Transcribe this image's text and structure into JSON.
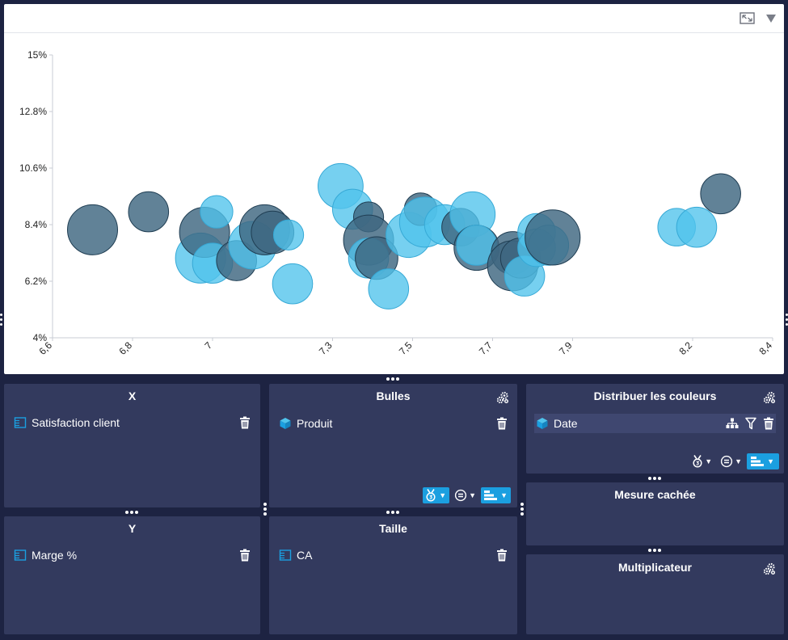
{
  "colors": {
    "series_dark": "#3e6680",
    "series_light": "#4fc3ec",
    "accent": "#1b9fe0",
    "panel": "#333a5e",
    "background": "#1d2342"
  },
  "toolbar": {
    "fullscreen_icon": "fullscreen-icon",
    "menu_icon": "dropdown-arrow-icon"
  },
  "chart_data": {
    "type": "scatter",
    "variant": "bubble",
    "title": "",
    "xlabel": "Satisfaction client",
    "ylabel": "Marge %",
    "xlim": [
      6.6,
      8.4
    ],
    "ylim": [
      4,
      15
    ],
    "x_ticks": [
      6.6,
      6.8,
      7,
      7.3,
      7.5,
      7.7,
      7.9,
      8.2,
      8.4
    ],
    "x_tick_labels": [
      "6,6",
      "6,8",
      "7",
      "7,3",
      "7,5",
      "7,7",
      "7,9",
      "8,2",
      "8,4"
    ],
    "y_ticks": [
      4,
      6.2,
      8.4,
      10.6,
      12.8,
      15
    ],
    "y_tick_labels": [
      "4%",
      "6.2%",
      "8.4%",
      "10.6%",
      "12.8%",
      "15%"
    ],
    "size_measure": "CA",
    "color_measure": "Date",
    "series": [
      {
        "name": "series-dark",
        "color": "#3e6680",
        "points": [
          {
            "x": 6.7,
            "y": 8.2,
            "size": 1.0
          },
          {
            "x": 6.84,
            "y": 8.9,
            "size": 0.8
          },
          {
            "x": 6.98,
            "y": 8.1,
            "size": 1.0
          },
          {
            "x": 7.06,
            "y": 7.0,
            "size": 0.8
          },
          {
            "x": 7.13,
            "y": 8.2,
            "size": 1.0
          },
          {
            "x": 7.15,
            "y": 8.1,
            "size": 0.85
          },
          {
            "x": 7.39,
            "y": 8.7,
            "size": 0.6
          },
          {
            "x": 7.39,
            "y": 7.8,
            "size": 1.0
          },
          {
            "x": 7.41,
            "y": 7.1,
            "size": 0.85
          },
          {
            "x": 7.52,
            "y": 9.0,
            "size": 0.65
          },
          {
            "x": 7.62,
            "y": 8.3,
            "size": 0.75
          },
          {
            "x": 7.66,
            "y": 7.5,
            "size": 0.9
          },
          {
            "x": 7.75,
            "y": 7.3,
            "size": 0.85
          },
          {
            "x": 7.75,
            "y": 6.8,
            "size": 1.0
          },
          {
            "x": 7.77,
            "y": 7.1,
            "size": 0.8
          },
          {
            "x": 7.85,
            "y": 7.9,
            "size": 1.1
          },
          {
            "x": 8.27,
            "y": 9.6,
            "size": 0.8
          }
        ]
      },
      {
        "name": "series-light",
        "color": "#4fc3ec",
        "points": [
          {
            "x": 6.97,
            "y": 7.1,
            "size": 1.0
          },
          {
            "x": 7.0,
            "y": 6.9,
            "size": 0.8
          },
          {
            "x": 7.01,
            "y": 8.9,
            "size": 0.65
          },
          {
            "x": 7.1,
            "y": 7.6,
            "size": 0.95
          },
          {
            "x": 7.19,
            "y": 8.0,
            "size": 0.6
          },
          {
            "x": 7.2,
            "y": 6.1,
            "size": 0.8
          },
          {
            "x": 7.32,
            "y": 9.9,
            "size": 0.9
          },
          {
            "x": 7.35,
            "y": 9.0,
            "size": 0.8
          },
          {
            "x": 7.39,
            "y": 7.1,
            "size": 0.8
          },
          {
            "x": 7.44,
            "y": 5.9,
            "size": 0.8
          },
          {
            "x": 7.49,
            "y": 8.0,
            "size": 0.9
          },
          {
            "x": 7.53,
            "y": 8.5,
            "size": 1.0
          },
          {
            "x": 7.58,
            "y": 8.4,
            "size": 0.8
          },
          {
            "x": 7.65,
            "y": 8.8,
            "size": 0.9
          },
          {
            "x": 7.66,
            "y": 7.6,
            "size": 0.8
          },
          {
            "x": 7.78,
            "y": 6.4,
            "size": 0.8
          },
          {
            "x": 7.81,
            "y": 8.1,
            "size": 0.75
          },
          {
            "x": 7.81,
            "y": 7.5,
            "size": 0.75
          },
          {
            "x": 7.84,
            "y": 7.6,
            "size": 0.8
          },
          {
            "x": 8.16,
            "y": 8.3,
            "size": 0.75
          },
          {
            "x": 8.21,
            "y": 8.3,
            "size": 0.8
          }
        ]
      }
    ]
  },
  "panels": {
    "x": {
      "title": "X",
      "field_label": "Satisfaction client",
      "field_icon": "measure-icon",
      "delete_icon": "trash-icon"
    },
    "y": {
      "title": "Y",
      "field_label": "Marge %",
      "field_icon": "measure-icon",
      "delete_icon": "trash-icon"
    },
    "bulles": {
      "title": "Bulles",
      "field_label": "Produit",
      "field_icon": "dimension-cube-icon",
      "delete_icon": "trash-icon",
      "settings_icon": "gears-icon"
    },
    "taille": {
      "title": "Taille",
      "field_label": "CA",
      "field_icon": "measure-icon",
      "delete_icon": "trash-icon"
    },
    "couleurs": {
      "title": "Distribuer les couleurs",
      "field_label": "Date",
      "field_icon": "dimension-cube-icon",
      "hierarchy_icon": "hierarchy-icon",
      "filter_icon": "filter-icon",
      "delete_icon": "trash-icon",
      "settings_icon": "gears-icon"
    },
    "cachee": {
      "title": "Mesure cachée"
    },
    "multiplicateur": {
      "title": "Multiplicateur",
      "settings_icon": "gears-icon"
    }
  },
  "controls": {
    "rank_icon": "rank-medal-icon",
    "equals_icon": "equals-icon",
    "sort_icon": "sort-bars-icon",
    "caret": "▼"
  }
}
